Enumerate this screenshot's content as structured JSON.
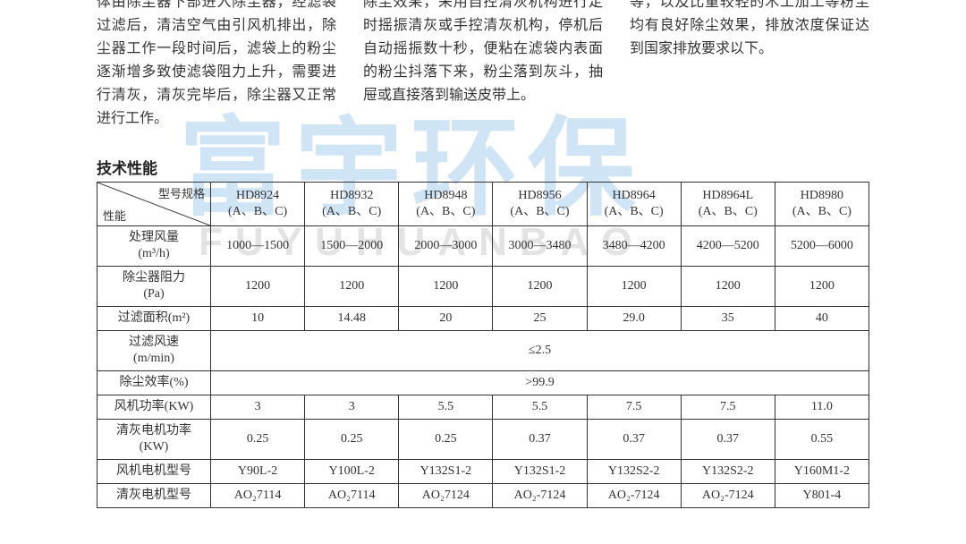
{
  "watermark": {
    "cn": "富宇环保",
    "en": "FUYUHUANBAO"
  },
  "paragraphs": {
    "col1": "体由除尘器下部进入除尘器，经滤袋过滤后，清洁空气由引风机排出，除尘器工作一段时间后，滤袋上的粉尘逐渐增多致使滤袋阻力上升，需要进行清灰，清灰完毕后，除尘器又正常进行工作。",
    "col2": "除尘效果，采用自控清灰机构进行定时摇振清灰或手控清灰机构，停机后自动摇振数十秒，便粘在滤袋内表面的粉尘抖落下来，粉尘落到灰斗，抽屉或直接落到输送皮带上。",
    "col3": "等，以及比重较轻的木工加工等粉尘均有良好除尘效果，排放浓度保证达到国家排放要求以下。"
  },
  "section_title": "技术性能",
  "table": {
    "diag_top": "型号规格",
    "diag_bot": "性能",
    "col_heads": [
      [
        "HD8924",
        "(A、B、C)"
      ],
      [
        "HD8932",
        "(A、B、C)"
      ],
      [
        "HD8948",
        "(A、B、C)"
      ],
      [
        "HD8956",
        "(A、B、C)"
      ],
      [
        "HD8964",
        "(A、B、C)"
      ],
      [
        "HD8964L",
        "(A、B、C)"
      ],
      [
        "HD8980",
        "(A、B、C)"
      ]
    ],
    "rows": [
      {
        "head": "处理风量\n(m³/h)",
        "cells": [
          "1000—1500",
          "1500—2000",
          "2000—3000",
          "3000—3480",
          "3480—4200",
          "4200—5200",
          "5200—6000"
        ]
      },
      {
        "head": "除尘器阻力\n(Pa)",
        "cells": [
          "1200",
          "1200",
          "1200",
          "1200",
          "1200",
          "1200",
          "1200"
        ]
      },
      {
        "head": "过滤面积(m²)",
        "cells": [
          "10",
          "14.48",
          "20",
          "25",
          "29.0",
          "35",
          "40"
        ]
      },
      {
        "head": "过滤风速\n(m/min)",
        "merged": "≤2.5"
      },
      {
        "head": "除尘效率(%)",
        "merged": ">99.9"
      },
      {
        "head": "风机功率(KW)",
        "cells": [
          "3",
          "3",
          "5.5",
          "5.5",
          "7.5",
          "7.5",
          "11.0"
        ]
      },
      {
        "head": "清灰电机功率\n(KW)",
        "cells": [
          "0.25",
          "0.25",
          "0.25",
          "0.37",
          "0.37",
          "0.37",
          "0.55"
        ]
      },
      {
        "head": "风机电机型号",
        "cells": [
          "Y90L-2",
          "Y100L-2",
          "Y132S1-2",
          "Y132S1-2",
          "Y132S2-2",
          "Y132S2-2",
          "Y160M1-2"
        ]
      },
      {
        "head": "清灰电机型号",
        "cells": [
          "AO₂7114",
          "AO₂7114",
          "AO₂7124",
          "AO₂-7124",
          "AO₂-7124",
          "AO₂-7124",
          "Y801-4"
        ]
      }
    ]
  }
}
